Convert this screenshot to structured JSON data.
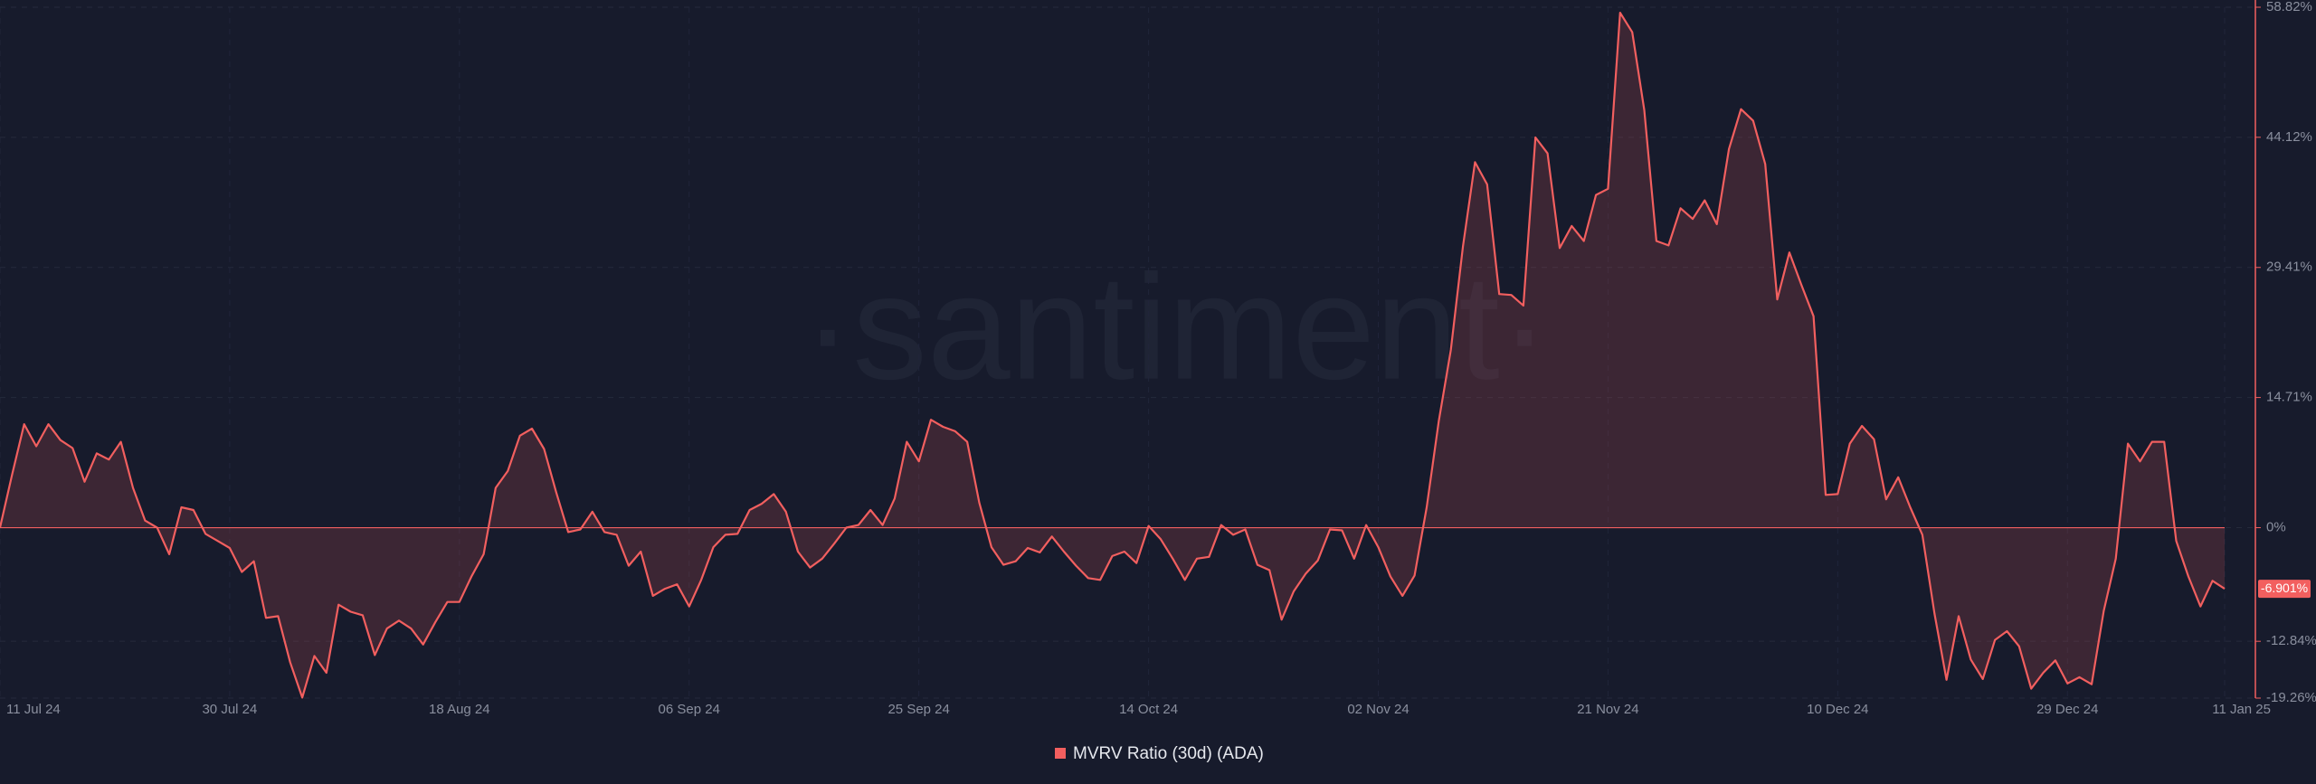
{
  "chart_data": {
    "type": "area",
    "watermark": "·santiment·",
    "categories": [
      "11 Jul 24",
      null,
      null,
      null,
      null,
      null,
      null,
      null,
      null,
      null,
      null,
      null,
      null,
      null,
      null,
      null,
      null,
      null,
      null,
      "30 Jul 24",
      null,
      null,
      null,
      null,
      null,
      null,
      null,
      null,
      null,
      null,
      null,
      null,
      null,
      null,
      null,
      null,
      null,
      null,
      "18 Aug 24",
      null,
      null,
      null,
      null,
      null,
      null,
      null,
      null,
      null,
      null,
      null,
      null,
      null,
      null,
      null,
      null,
      null,
      null,
      "06 Sep 24",
      null,
      null,
      null,
      null,
      null,
      null,
      null,
      null,
      null,
      null,
      null,
      null,
      null,
      null,
      null,
      null,
      null,
      null,
      "25 Sep 24",
      null,
      null,
      null,
      null,
      null,
      null,
      null,
      null,
      null,
      null,
      null,
      null,
      null,
      null,
      null,
      null,
      null,
      null,
      "14 Oct 24",
      null,
      null,
      null,
      null,
      null,
      null,
      null,
      null,
      null,
      null,
      null,
      null,
      null,
      null,
      null,
      null,
      null,
      null,
      "02 Nov 24",
      null,
      null,
      null,
      null,
      null,
      null,
      null,
      null,
      null,
      null,
      null,
      null,
      null,
      null,
      null,
      null,
      null,
      null,
      "21 Nov 24",
      null,
      null,
      null,
      null,
      null,
      null,
      null,
      null,
      null,
      null,
      null,
      null,
      null,
      null,
      null,
      null,
      null,
      null,
      "10 Dec 24",
      null,
      null,
      null,
      null,
      null,
      null,
      null,
      null,
      null,
      null,
      null,
      null,
      null,
      null,
      null,
      null,
      null,
      null,
      "29 Dec 24",
      null,
      null,
      null,
      null,
      null,
      null,
      null,
      null,
      null,
      null,
      null,
      null,
      "11 Jan 25"
    ],
    "series": [
      {
        "name": "MVRV Ratio (30d) (ADA)",
        "color": "#f25f5f",
        "values": [
          0,
          6,
          11.7,
          9.2,
          11.7,
          9.9,
          9,
          5.2,
          8.4,
          7.7,
          9.7,
          4.5,
          0.8,
          0,
          -3,
          2.3,
          2,
          -0.7,
          -1.5,
          -2.3,
          -5,
          -3.8,
          -10.2,
          -10,
          -15.2,
          -19.2,
          -14.5,
          -16.4,
          -8.7,
          -9.5,
          -9.9,
          -14.4,
          -11.4,
          -10.5,
          -11.4,
          -13.2,
          -10.7,
          -8.4,
          -8.4,
          -5.5,
          -3,
          4.5,
          6.4,
          10.4,
          11.2,
          8.9,
          4,
          -0.5,
          -0.2,
          1.8,
          -0.5,
          -0.8,
          -4.3,
          -2.7,
          -7.7,
          -6.9,
          -6.4,
          -8.9,
          -5.9,
          -2.2,
          -0.8,
          -0.7,
          2,
          2.7,
          3.8,
          1.8,
          -2.7,
          -4.5,
          -3.5,
          -1.8,
          0,
          0.3,
          2,
          0.3,
          3.3,
          9.7,
          7.5,
          12.2,
          11.4,
          10.9,
          9.7,
          2.8,
          -2.2,
          -4.2,
          -3.8,
          -2.3,
          -2.8,
          -1,
          -2.7,
          -4.3,
          -5.7,
          -5.9,
          -3.2,
          -2.7,
          -4,
          0.2,
          -1.3,
          -3.5,
          -5.9,
          -3.5,
          -3.3,
          0.3,
          -0.8,
          -0.2,
          -4.2,
          -4.8,
          -10.4,
          -7.2,
          -5.2,
          -3.7,
          -0.2,
          -0.3,
          -3.5,
          0.3,
          -2.2,
          -5.5,
          -7.7,
          -5.4,
          2.3,
          12,
          20.1,
          31.8,
          41.3,
          38.8,
          26.4,
          26.3,
          25.1,
          44.1,
          42.3,
          31.6,
          34.1,
          32.4,
          37.6,
          38.3,
          58.2,
          56,
          47.2,
          32.4,
          31.9,
          36.1,
          34.9,
          37,
          34.3,
          42.8,
          47.3,
          46,
          41.1,
          25.8,
          31.1,
          27.4,
          23.9,
          3.7,
          3.8,
          9.5,
          11.5,
          10,
          3.2,
          5.7,
          2.3,
          -0.8,
          -9.7,
          -17.2,
          -10,
          -14.9,
          -17.1,
          -12.7,
          -11.7,
          -13.4,
          -18.2,
          -16.4,
          -15,
          -17.6,
          -16.9,
          -17.7,
          -9.4,
          -3.5,
          9.5,
          7.5,
          9.7,
          9.7,
          -1.5,
          -5.5,
          -8.9,
          -6,
          -6.901
        ],
        "value_labels": [
          null,
          null,
          null,
          null,
          null,
          null,
          null,
          null,
          null,
          null,
          null,
          null,
          null,
          null,
          null,
          null,
          null,
          null,
          null,
          null,
          null,
          null,
          null,
          null,
          null,
          null,
          null,
          null,
          null,
          null,
          null,
          null,
          null,
          null,
          null,
          null,
          null,
          null,
          null,
          null,
          null,
          null,
          null,
          null,
          null,
          null,
          null,
          null,
          null,
          null,
          null,
          null,
          null,
          null,
          null,
          null,
          null,
          null,
          null,
          null,
          null,
          null,
          null,
          null,
          null,
          null,
          null,
          null,
          null,
          null,
          null,
          null,
          null,
          null,
          null,
          null,
          null,
          null,
          null,
          null,
          null,
          null,
          null,
          null,
          null,
          null,
          null,
          null,
          null,
          null,
          null,
          null,
          null,
          null,
          null,
          null,
          null,
          null,
          null,
          null,
          null,
          null,
          null,
          null,
          null,
          null,
          null,
          null,
          null,
          null,
          null,
          null,
          null,
          null,
          null,
          null,
          null,
          null,
          null,
          null,
          null,
          null,
          null,
          null,
          null,
          null,
          null,
          null,
          null,
          null,
          null,
          null,
          null,
          null,
          null,
          null,
          null,
          null,
          null,
          null,
          null,
          null,
          null,
          null,
          null,
          null,
          null,
          null,
          null,
          null,
          null,
          null,
          null,
          null,
          null,
          null,
          null,
          null,
          null,
          null,
          null,
          null,
          null,
          null,
          null,
          null,
          null,
          null,
          null,
          null,
          null,
          null,
          null,
          null,
          null,
          null,
          null,
          null,
          null,
          null,
          null,
          null,
          null,
          null,
          "-6.901%"
        ]
      }
    ],
    "ylim": [
      -19.26,
      58.82
    ],
    "yticks": [
      {
        "value": 58.82,
        "label": "58.82%"
      },
      {
        "value": 44.12,
        "label": "44.12%"
      },
      {
        "value": 29.41,
        "label": "29.41%"
      },
      {
        "value": 14.71,
        "label": "14.71%"
      },
      {
        "value": 0,
        "label": "0%"
      },
      {
        "value": -12.84,
        "label": "-12.84%"
      },
      {
        "value": -19.26,
        "label": "-19.26%"
      }
    ],
    "grid": true,
    "legend": "bottom"
  }
}
